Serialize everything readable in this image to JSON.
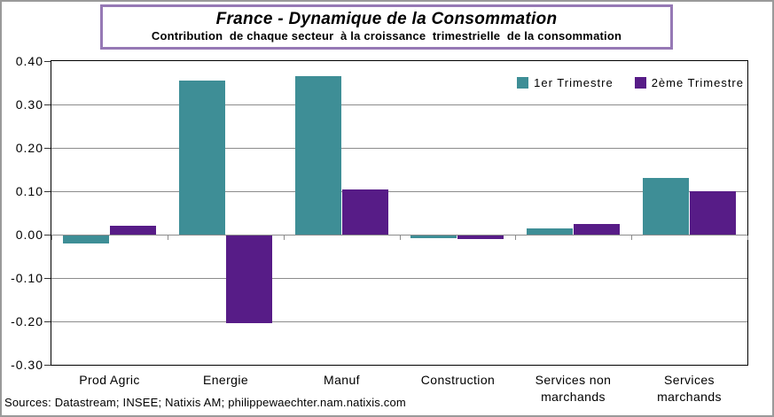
{
  "title": "France - Dynamique de la Consommation",
  "subtitle": "Contribution  de chaque secteur  à la croissance  trimestrielle  de la consommation",
  "source": "Sources: Datastream; INSEE; Natixis AM; philippewaechter.nam.natixis.com",
  "colors": {
    "series1": "#3e8e96",
    "series2": "#571c87",
    "gridline": "#8c8c8c",
    "plot_border": "#000000",
    "title_border": "#9679b5",
    "outer_border": "#9a9a9a"
  },
  "chart_data": {
    "type": "bar",
    "categories": [
      "Prod Agric",
      "Energie",
      "Manuf",
      "Construction",
      "Services non\nmarchands",
      "Services\nmarchands"
    ],
    "series": [
      {
        "name": "1er Trimestre",
        "color": "#3e8e96",
        "values": [
          -0.02,
          0.355,
          0.365,
          -0.008,
          0.015,
          0.13
        ]
      },
      {
        "name": "2ème Trimestre",
        "color": "#571c87",
        "values": [
          0.02,
          -0.205,
          0.105,
          -0.01,
          0.025,
          0.1
        ]
      }
    ],
    "ylim": [
      -0.3,
      0.4
    ],
    "ytick_step": 0.1,
    "ytick_labels": [
      "0.40",
      "0.30",
      "0.20",
      "0.10",
      "0.00",
      "-0.10",
      "-0.20",
      "-0.30"
    ],
    "grid": true,
    "legend_position": "top-right"
  }
}
